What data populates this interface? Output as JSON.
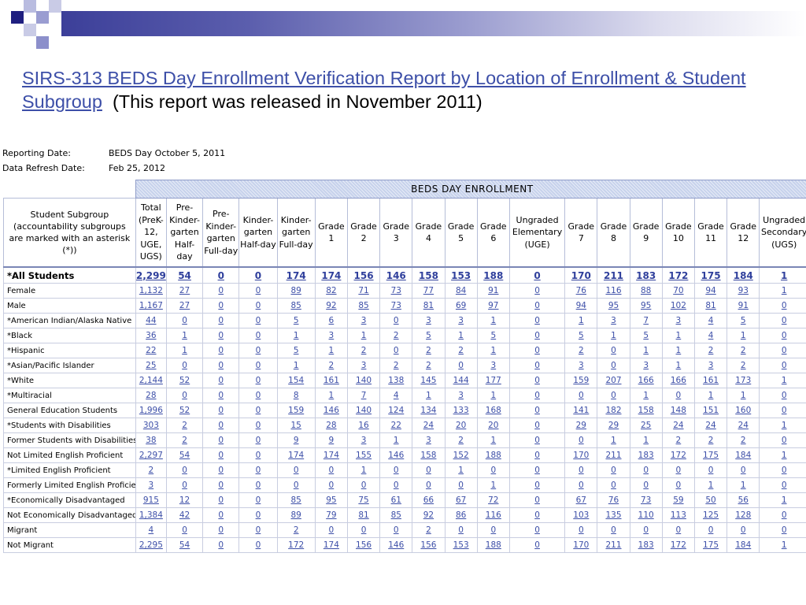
{
  "title": {
    "link_text": "SIRS-313 BEDS Day Enrollment Verification Report by Location of Enrollment & Student Subgroup",
    "note": "(This report was released in November 2011)"
  },
  "meta": {
    "reporting_label": "Reporting Date:",
    "reporting_value": "BEDS Day October 5, 2011",
    "refresh_label": "Data Refresh Date:",
    "refresh_value": "Feb 25, 2012"
  },
  "table": {
    "group_header": "BEDS  DAY  ENROLLMENT",
    "columns": [
      "Student Subgroup (accountability subgroups are marked with an asterisk (*))",
      "Total (PreK-12, UGE, UGS)",
      "Pre-Kinder-garten Half-day",
      "Pre-Kinder-garten Full-day",
      "Kinder-garten Half-day",
      "Kinder-garten Full-day",
      "Grade 1",
      "Grade 2",
      "Grade 3",
      "Grade 4",
      "Grade 5",
      "Grade 6",
      "Ungraded Elementary (UGE)",
      "Grade 7",
      "Grade 8",
      "Grade 9",
      "Grade 10",
      "Grade 11",
      "Grade 12",
      "Ungraded Secondary (UGS)"
    ],
    "rows": [
      {
        "name": "*All Students",
        "values": [
          "2,299",
          "54",
          "0",
          "0",
          "174",
          "174",
          "156",
          "146",
          "158",
          "153",
          "188",
          "0",
          "170",
          "211",
          "183",
          "172",
          "175",
          "184",
          "1"
        ]
      },
      {
        "name": "Female",
        "values": [
          "1,132",
          "27",
          "0",
          "0",
          "89",
          "82",
          "71",
          "73",
          "77",
          "84",
          "91",
          "0",
          "76",
          "116",
          "88",
          "70",
          "94",
          "93",
          "1"
        ]
      },
      {
        "name": "Male",
        "values": [
          "1,167",
          "27",
          "0",
          "0",
          "85",
          "92",
          "85",
          "73",
          "81",
          "69",
          "97",
          "0",
          "94",
          "95",
          "95",
          "102",
          "81",
          "91",
          "0"
        ]
      },
      {
        "name": "*American Indian/Alaska Native",
        "values": [
          "44",
          "0",
          "0",
          "0",
          "5",
          "6",
          "3",
          "0",
          "3",
          "3",
          "1",
          "0",
          "1",
          "3",
          "7",
          "3",
          "4",
          "5",
          "0"
        ]
      },
      {
        "name": "*Black",
        "values": [
          "36",
          "1",
          "0",
          "0",
          "1",
          "3",
          "1",
          "2",
          "5",
          "1",
          "5",
          "0",
          "5",
          "1",
          "5",
          "1",
          "4",
          "1",
          "0"
        ]
      },
      {
        "name": "*Hispanic",
        "values": [
          "22",
          "1",
          "0",
          "0",
          "5",
          "1",
          "2",
          "0",
          "2",
          "2",
          "1",
          "0",
          "2",
          "0",
          "1",
          "1",
          "2",
          "2",
          "0"
        ]
      },
      {
        "name": "*Asian/Pacific Islander",
        "values": [
          "25",
          "0",
          "0",
          "0",
          "1",
          "2",
          "3",
          "2",
          "2",
          "0",
          "3",
          "0",
          "3",
          "0",
          "3",
          "1",
          "3",
          "2",
          "0"
        ]
      },
      {
        "name": "*White",
        "values": [
          "2,144",
          "52",
          "0",
          "0",
          "154",
          "161",
          "140",
          "138",
          "145",
          "144",
          "177",
          "0",
          "159",
          "207",
          "166",
          "166",
          "161",
          "173",
          "1"
        ]
      },
      {
        "name": "*Multiracial",
        "values": [
          "28",
          "0",
          "0",
          "0",
          "8",
          "1",
          "7",
          "4",
          "1",
          "3",
          "1",
          "0",
          "0",
          "0",
          "1",
          "0",
          "1",
          "1",
          "0"
        ]
      },
      {
        "name": "General Education Students",
        "values": [
          "1,996",
          "52",
          "0",
          "0",
          "159",
          "146",
          "140",
          "124",
          "134",
          "133",
          "168",
          "0",
          "141",
          "182",
          "158",
          "148",
          "151",
          "160",
          "0"
        ]
      },
      {
        "name": "*Students with Disabilities",
        "values": [
          "303",
          "2",
          "0",
          "0",
          "15",
          "28",
          "16",
          "22",
          "24",
          "20",
          "20",
          "0",
          "29",
          "29",
          "25",
          "24",
          "24",
          "24",
          "1"
        ]
      },
      {
        "name": "Former Students with Disabilities",
        "values": [
          "38",
          "2",
          "0",
          "0",
          "9",
          "9",
          "3",
          "1",
          "3",
          "2",
          "1",
          "0",
          "0",
          "1",
          "1",
          "2",
          "2",
          "2",
          "0"
        ]
      },
      {
        "name": "Not Limited English Proficient",
        "values": [
          "2,297",
          "54",
          "0",
          "0",
          "174",
          "174",
          "155",
          "146",
          "158",
          "152",
          "188",
          "0",
          "170",
          "211",
          "183",
          "172",
          "175",
          "184",
          "1"
        ]
      },
      {
        "name": "*Limited English Proficient",
        "values": [
          "2",
          "0",
          "0",
          "0",
          "0",
          "0",
          "1",
          "0",
          "0",
          "1",
          "0",
          "0",
          "0",
          "0",
          "0",
          "0",
          "0",
          "0",
          "0"
        ]
      },
      {
        "name": "Formerly Limited English Proficient",
        "values": [
          "3",
          "0",
          "0",
          "0",
          "0",
          "0",
          "0",
          "0",
          "0",
          "0",
          "1",
          "0",
          "0",
          "0",
          "0",
          "0",
          "1",
          "1",
          "0"
        ]
      },
      {
        "name": "*Economically Disadvantaged",
        "values": [
          "915",
          "12",
          "0",
          "0",
          "85",
          "95",
          "75",
          "61",
          "66",
          "67",
          "72",
          "0",
          "67",
          "76",
          "73",
          "59",
          "50",
          "56",
          "1"
        ]
      },
      {
        "name": "Not Economically Disadvantaged",
        "values": [
          "1,384",
          "42",
          "0",
          "0",
          "89",
          "79",
          "81",
          "85",
          "92",
          "86",
          "116",
          "0",
          "103",
          "135",
          "110",
          "113",
          "125",
          "128",
          "0"
        ]
      },
      {
        "name": "Migrant",
        "values": [
          "4",
          "0",
          "0",
          "0",
          "2",
          "0",
          "0",
          "0",
          "2",
          "0",
          "0",
          "0",
          "0",
          "0",
          "0",
          "0",
          "0",
          "0",
          "0"
        ]
      },
      {
        "name": "Not Migrant",
        "values": [
          "2,295",
          "54",
          "0",
          "0",
          "172",
          "174",
          "156",
          "146",
          "156",
          "153",
          "188",
          "0",
          "170",
          "211",
          "183",
          "172",
          "175",
          "184",
          "1"
        ]
      }
    ]
  },
  "colors": {
    "accent": "#3d4fa8",
    "header_band": "#c7d2ec",
    "deco_dark": "#1f1f80",
    "deco_light": "#b9bce0"
  }
}
